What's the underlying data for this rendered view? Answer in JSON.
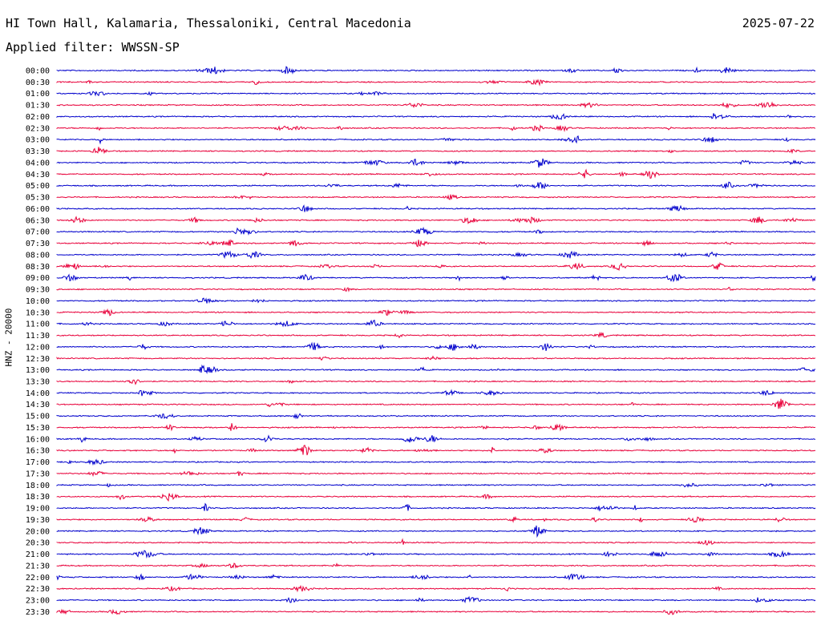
{
  "header": {
    "station": "HI Town Hall, Kalamaria, Thessaloniki, Central Macedonia",
    "date": "2025-07-22",
    "filter": "Applied filter: WWSSN-SP"
  },
  "chart_data": {
    "type": "line",
    "title": "HI Town Hall, Kalamaria, Thessaloniki, Central Macedonia",
    "subtitle": "Applied filter: WWSSN-SP",
    "ylabel": "HNZ - 20000",
    "xlabel": "",
    "date": "2025-07-22",
    "colors": [
      "#0000cc",
      "#e8003a"
    ],
    "grid": false,
    "row_labels": [
      "00:00",
      "00:30",
      "01:00",
      "01:30",
      "02:00",
      "02:30",
      "03:00",
      "03:30",
      "04:00",
      "04:30",
      "05:00",
      "05:30",
      "06:00",
      "06:30",
      "07:00",
      "07:30",
      "08:00",
      "08:30",
      "09:00",
      "09:30",
      "10:00",
      "10:30",
      "11:00",
      "11:30",
      "12:00",
      "12:30",
      "13:00",
      "13:30",
      "14:00",
      "14:30",
      "15:00",
      "15:30",
      "16:00",
      "16:30",
      "17:00",
      "17:30",
      "18:00",
      "18:30",
      "19:00",
      "19:30",
      "20:00",
      "20:30",
      "21:00",
      "21:30",
      "22:00",
      "22:30",
      "23:00",
      "23:30"
    ]
  }
}
